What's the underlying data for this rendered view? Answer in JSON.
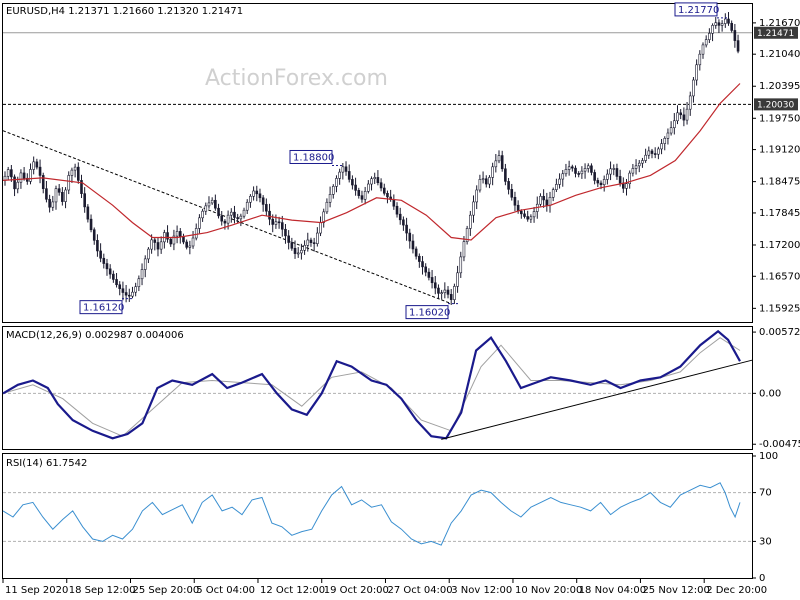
{
  "chart_data": [
    {
      "type": "candlestick",
      "title": "EURUSD,H4  1.21371 1.21660 1.21320 1.21471",
      "watermark": "ActionForex.com",
      "ylim": [
        1.1565,
        1.2205
      ],
      "yticks": [
        1.2167,
        1.2104,
        1.20395,
        1.1975,
        1.1912,
        1.18475,
        1.17845,
        1.172,
        1.1657,
        1.15925
      ],
      "ytick_labels": [
        "1.21670",
        "1.21040",
        "1.20395",
        "1.19750",
        "1.19120",
        "1.18475",
        "1.17845",
        "1.17200",
        "1.16570",
        "1.15925"
      ],
      "current_price": 1.21471,
      "current_price_label": "1.21471",
      "level_line": 1.2003,
      "level_line_label": "1.20030",
      "annotations": [
        {
          "text": "1.16120",
          "value": 1.1612
        },
        {
          "text": "1.18800",
          "value": 1.188
        },
        {
          "text": "1.16020",
          "value": 1.1602
        },
        {
          "text": "1.21770",
          "value": 1.2177
        }
      ],
      "price_path": [
        [
          0,
          1.185
        ],
        [
          6,
          1.1875
        ],
        [
          12,
          1.183
        ],
        [
          18,
          1.1865
        ],
        [
          24,
          1.1845
        ],
        [
          30,
          1.189
        ],
        [
          36,
          1.187
        ],
        [
          42,
          1.182
        ],
        [
          48,
          1.179
        ],
        [
          54,
          1.184
        ],
        [
          60,
          1.1805
        ],
        [
          66,
          1.186
        ],
        [
          72,
          1.188
        ],
        [
          78,
          1.183
        ],
        [
          84,
          1.178
        ],
        [
          90,
          1.174
        ],
        [
          96,
          1.17
        ],
        [
          102,
          1.168
        ],
        [
          108,
          1.166
        ],
        [
          114,
          1.164
        ],
        [
          120,
          1.1625
        ],
        [
          126,
          1.1615
        ],
        [
          132,
          1.163
        ],
        [
          138,
          1.166
        ],
        [
          144,
          1.17
        ],
        [
          150,
          1.1735
        ],
        [
          156,
          1.171
        ],
        [
          162,
          1.1745
        ],
        [
          168,
          1.172
        ],
        [
          174,
          1.175
        ],
        [
          180,
          1.173
        ],
        [
          186,
          1.171
        ],
        [
          192,
          1.174
        ],
        [
          198,
          1.178
        ],
        [
          204,
          1.18
        ],
        [
          210,
          1.181
        ],
        [
          216,
          1.178
        ],
        [
          222,
          1.176
        ],
        [
          228,
          1.179
        ],
        [
          234,
          1.177
        ],
        [
          240,
          1.178
        ],
        [
          246,
          1.181
        ],
        [
          252,
          1.183
        ],
        [
          258,
          1.1815
        ],
        [
          264,
          1.179
        ],
        [
          270,
          1.176
        ],
        [
          276,
          1.177
        ],
        [
          282,
          1.1745
        ],
        [
          288,
          1.172
        ],
        [
          294,
          1.17
        ],
        [
          300,
          1.171
        ],
        [
          306,
          1.173
        ],
        [
          312,
          1.172
        ],
        [
          318,
          1.176
        ],
        [
          324,
          1.18
        ],
        [
          330,
          1.183
        ],
        [
          336,
          1.186
        ],
        [
          342,
          1.188
        ],
        [
          348,
          1.185
        ],
        [
          354,
          1.183
        ],
        [
          360,
          1.181
        ],
        [
          366,
          1.184
        ],
        [
          372,
          1.186
        ],
        [
          378,
          1.184
        ],
        [
          384,
          1.182
        ],
        [
          390,
          1.181
        ],
        [
          396,
          1.178
        ],
        [
          402,
          1.176
        ],
        [
          408,
          1.173
        ],
        [
          414,
          1.17
        ],
        [
          420,
          1.168
        ],
        [
          426,
          1.166
        ],
        [
          432,
          1.164
        ],
        [
          438,
          1.162
        ],
        [
          444,
          1.163
        ],
        [
          450,
          1.161
        ],
        [
          456,
          1.166
        ],
        [
          462,
          1.172
        ],
        [
          468,
          1.177
        ],
        [
          474,
          1.182
        ],
        [
          480,
          1.186
        ],
        [
          486,
          1.184
        ],
        [
          492,
          1.188
        ],
        [
          498,
          1.19
        ],
        [
          504,
          1.185
        ],
        [
          510,
          1.182
        ],
        [
          516,
          1.179
        ],
        [
          522,
          1.178
        ],
        [
          528,
          1.177
        ],
        [
          534,
          1.179
        ],
        [
          540,
          1.182
        ],
        [
          546,
          1.18
        ],
        [
          552,
          1.183
        ],
        [
          558,
          1.185
        ],
        [
          564,
          1.187
        ],
        [
          570,
          1.188
        ],
        [
          576,
          1.186
        ],
        [
          582,
          1.187
        ],
        [
          588,
          1.188
        ],
        [
          594,
          1.185
        ],
        [
          600,
          1.184
        ],
        [
          606,
          1.186
        ],
        [
          612,
          1.188
        ],
        [
          618,
          1.185
        ],
        [
          624,
          1.183
        ],
        [
          630,
          1.187
        ],
        [
          636,
          1.188
        ],
        [
          642,
          1.189
        ],
        [
          648,
          1.191
        ],
        [
          654,
          1.19
        ],
        [
          660,
          1.192
        ],
        [
          666,
          1.194
        ],
        [
          672,
          1.196
        ],
        [
          678,
          1.199
        ],
        [
          684,
          1.197
        ],
        [
          690,
          1.202
        ],
        [
          696,
          1.208
        ],
        [
          702,
          1.212
        ],
        [
          708,
          1.214
        ],
        [
          714,
          1.217
        ],
        [
          720,
          1.216
        ],
        [
          726,
          1.2177
        ],
        [
          732,
          1.215
        ],
        [
          738,
          1.211
        ],
        [
          740,
          1.2147
        ]
      ],
      "ma_path": [
        [
          0,
          1.185
        ],
        [
          40,
          1.1855
        ],
        [
          80,
          1.1845
        ],
        [
          110,
          1.18
        ],
        [
          130,
          1.1765
        ],
        [
          150,
          1.1735
        ],
        [
          175,
          1.1735
        ],
        [
          205,
          1.1745
        ],
        [
          230,
          1.176
        ],
        [
          260,
          1.178
        ],
        [
          290,
          1.177
        ],
        [
          320,
          1.1765
        ],
        [
          345,
          1.1785
        ],
        [
          375,
          1.1815
        ],
        [
          400,
          1.181
        ],
        [
          425,
          1.178
        ],
        [
          450,
          1.1735
        ],
        [
          470,
          1.173
        ],
        [
          495,
          1.1775
        ],
        [
          520,
          1.179
        ],
        [
          550,
          1.18
        ],
        [
          575,
          1.182
        ],
        [
          600,
          1.1835
        ],
        [
          625,
          1.1845
        ],
        [
          650,
          1.186
        ],
        [
          675,
          1.189
        ],
        [
          700,
          1.195
        ],
        [
          720,
          1.2005
        ],
        [
          740,
          1.2045
        ]
      ],
      "trendline": [
        [
          0,
          1.195
        ],
        [
          450,
          1.1602
        ]
      ]
    },
    {
      "type": "line",
      "title": "MACD(12,26,9) 0.002987 0.004006",
      "ylim": [
        -0.0052,
        0.0062
      ],
      "yticks": [
        0.005725,
        0.0,
        -0.004755
      ],
      "ytick_labels": [
        "0.005725",
        "0.00",
        "-0.004755"
      ],
      "macd_path": [
        [
          0,
          0.0
        ],
        [
          15,
          0.0008
        ],
        [
          30,
          0.0012
        ],
        [
          45,
          0.0005
        ],
        [
          55,
          -0.001
        ],
        [
          70,
          -0.0025
        ],
        [
          90,
          -0.0035
        ],
        [
          110,
          -0.0042
        ],
        [
          125,
          -0.0038
        ],
        [
          140,
          -0.0028
        ],
        [
          155,
          0.0005
        ],
        [
          170,
          0.0012
        ],
        [
          190,
          0.0008
        ],
        [
          210,
          0.0018
        ],
        [
          225,
          0.0005
        ],
        [
          240,
          0.001
        ],
        [
          260,
          0.0018
        ],
        [
          275,
          0.0
        ],
        [
          290,
          -0.0015
        ],
        [
          305,
          -0.002
        ],
        [
          320,
          0.0
        ],
        [
          335,
          0.003
        ],
        [
          350,
          0.0025
        ],
        [
          370,
          0.0012
        ],
        [
          385,
          0.0008
        ],
        [
          400,
          -0.0005
        ],
        [
          415,
          -0.0025
        ],
        [
          430,
          -0.004
        ],
        [
          445,
          -0.0042
        ],
        [
          460,
          -0.0018
        ],
        [
          475,
          0.004
        ],
        [
          490,
          0.0052
        ],
        [
          505,
          0.003
        ],
        [
          520,
          0.0005
        ],
        [
          535,
          0.001
        ],
        [
          550,
          0.0015
        ],
        [
          570,
          0.0012
        ],
        [
          590,
          0.0008
        ],
        [
          605,
          0.0012
        ],
        [
          620,
          0.0005
        ],
        [
          640,
          0.0012
        ],
        [
          660,
          0.0015
        ],
        [
          680,
          0.0025
        ],
        [
          700,
          0.0045
        ],
        [
          718,
          0.0058
        ],
        [
          728,
          0.005
        ],
        [
          740,
          0.003
        ]
      ],
      "signal_path": [
        [
          0,
          0.0
        ],
        [
          30,
          0.0008
        ],
        [
          60,
          -0.0005
        ],
        [
          90,
          -0.0028
        ],
        [
          120,
          -0.004
        ],
        [
          150,
          -0.0015
        ],
        [
          180,
          0.001
        ],
        [
          210,
          0.0012
        ],
        [
          240,
          0.001
        ],
        [
          270,
          0.0008
        ],
        [
          300,
          -0.0012
        ],
        [
          330,
          0.0015
        ],
        [
          360,
          0.002
        ],
        [
          390,
          0.0005
        ],
        [
          420,
          -0.0025
        ],
        [
          450,
          -0.0035
        ],
        [
          480,
          0.0025
        ],
        [
          500,
          0.0045
        ],
        [
          530,
          0.0012
        ],
        [
          560,
          0.0012
        ],
        [
          590,
          0.001
        ],
        [
          620,
          0.0008
        ],
        [
          650,
          0.0012
        ],
        [
          680,
          0.002
        ],
        [
          700,
          0.0038
        ],
        [
          720,
          0.0052
        ],
        [
          740,
          0.004
        ]
      ],
      "trendline": [
        [
          440,
          -0.0043
        ],
        [
          752,
          0.0031
        ]
      ]
    },
    {
      "type": "line",
      "title": "RSI(14) 61.7542",
      "ylim": [
        0,
        100
      ],
      "yticks": [
        100,
        70,
        30,
        0
      ],
      "ytick_labels": [
        "100",
        "70",
        "30",
        "0"
      ],
      "levels": [
        70,
        30
      ],
      "rsi_path": [
        [
          0,
          55
        ],
        [
          10,
          50
        ],
        [
          20,
          60
        ],
        [
          30,
          62
        ],
        [
          40,
          50
        ],
        [
          50,
          40
        ],
        [
          60,
          48
        ],
        [
          70,
          55
        ],
        [
          80,
          42
        ],
        [
          90,
          32
        ],
        [
          100,
          30
        ],
        [
          110,
          35
        ],
        [
          120,
          32
        ],
        [
          130,
          40
        ],
        [
          140,
          55
        ],
        [
          150,
          62
        ],
        [
          160,
          52
        ],
        [
          170,
          56
        ],
        [
          180,
          60
        ],
        [
          190,
          45
        ],
        [
          200,
          62
        ],
        [
          210,
          68
        ],
        [
          220,
          55
        ],
        [
          230,
          58
        ],
        [
          240,
          52
        ],
        [
          250,
          64
        ],
        [
          260,
          66
        ],
        [
          270,
          45
        ],
        [
          280,
          42
        ],
        [
          290,
          35
        ],
        [
          300,
          38
        ],
        [
          310,
          40
        ],
        [
          320,
          55
        ],
        [
          330,
          68
        ],
        [
          340,
          75
        ],
        [
          350,
          60
        ],
        [
          360,
          64
        ],
        [
          370,
          58
        ],
        [
          380,
          60
        ],
        [
          390,
          46
        ],
        [
          400,
          40
        ],
        [
          410,
          32
        ],
        [
          420,
          28
        ],
        [
          430,
          30
        ],
        [
          440,
          27
        ],
        [
          450,
          45
        ],
        [
          460,
          55
        ],
        [
          470,
          68
        ],
        [
          480,
          72
        ],
        [
          490,
          70
        ],
        [
          500,
          62
        ],
        [
          510,
          55
        ],
        [
          520,
          50
        ],
        [
          530,
          58
        ],
        [
          540,
          62
        ],
        [
          550,
          66
        ],
        [
          560,
          62
        ],
        [
          570,
          60
        ],
        [
          580,
          58
        ],
        [
          590,
          55
        ],
        [
          600,
          62
        ],
        [
          610,
          52
        ],
        [
          620,
          58
        ],
        [
          630,
          62
        ],
        [
          640,
          65
        ],
        [
          650,
          70
        ],
        [
          660,
          62
        ],
        [
          670,
          58
        ],
        [
          680,
          68
        ],
        [
          690,
          72
        ],
        [
          700,
          76
        ],
        [
          710,
          74
        ],
        [
          720,
          78
        ],
        [
          725,
          70
        ],
        [
          730,
          58
        ],
        [
          735,
          50
        ],
        [
          740,
          62
        ]
      ]
    }
  ],
  "x_axis": {
    "labels": [
      "11 Sep 2020",
      "18 Sep 12:00",
      "25 Sep 20:00",
      "5 Oct 04:00",
      "12 Oct 12:00",
      "19 Oct 20:00",
      "27 Oct 04:00",
      "3 Nov 12:00",
      "10 Nov 20:00",
      "18 Nov 04:00",
      "25 Nov 12:00",
      "2 Dec 20:00"
    ],
    "positions": [
      0,
      64,
      128,
      192,
      256,
      320,
      384,
      448,
      512,
      576,
      640,
      704
    ]
  },
  "colors": {
    "price": "#1a1a2e",
    "ma": "#c0282d",
    "macd": "#1a1a8c",
    "signal": "#a0a0a0",
    "rsi": "#3a8fd0",
    "axis_frame": "#000000",
    "tag_fill": "#3a3a3a"
  }
}
